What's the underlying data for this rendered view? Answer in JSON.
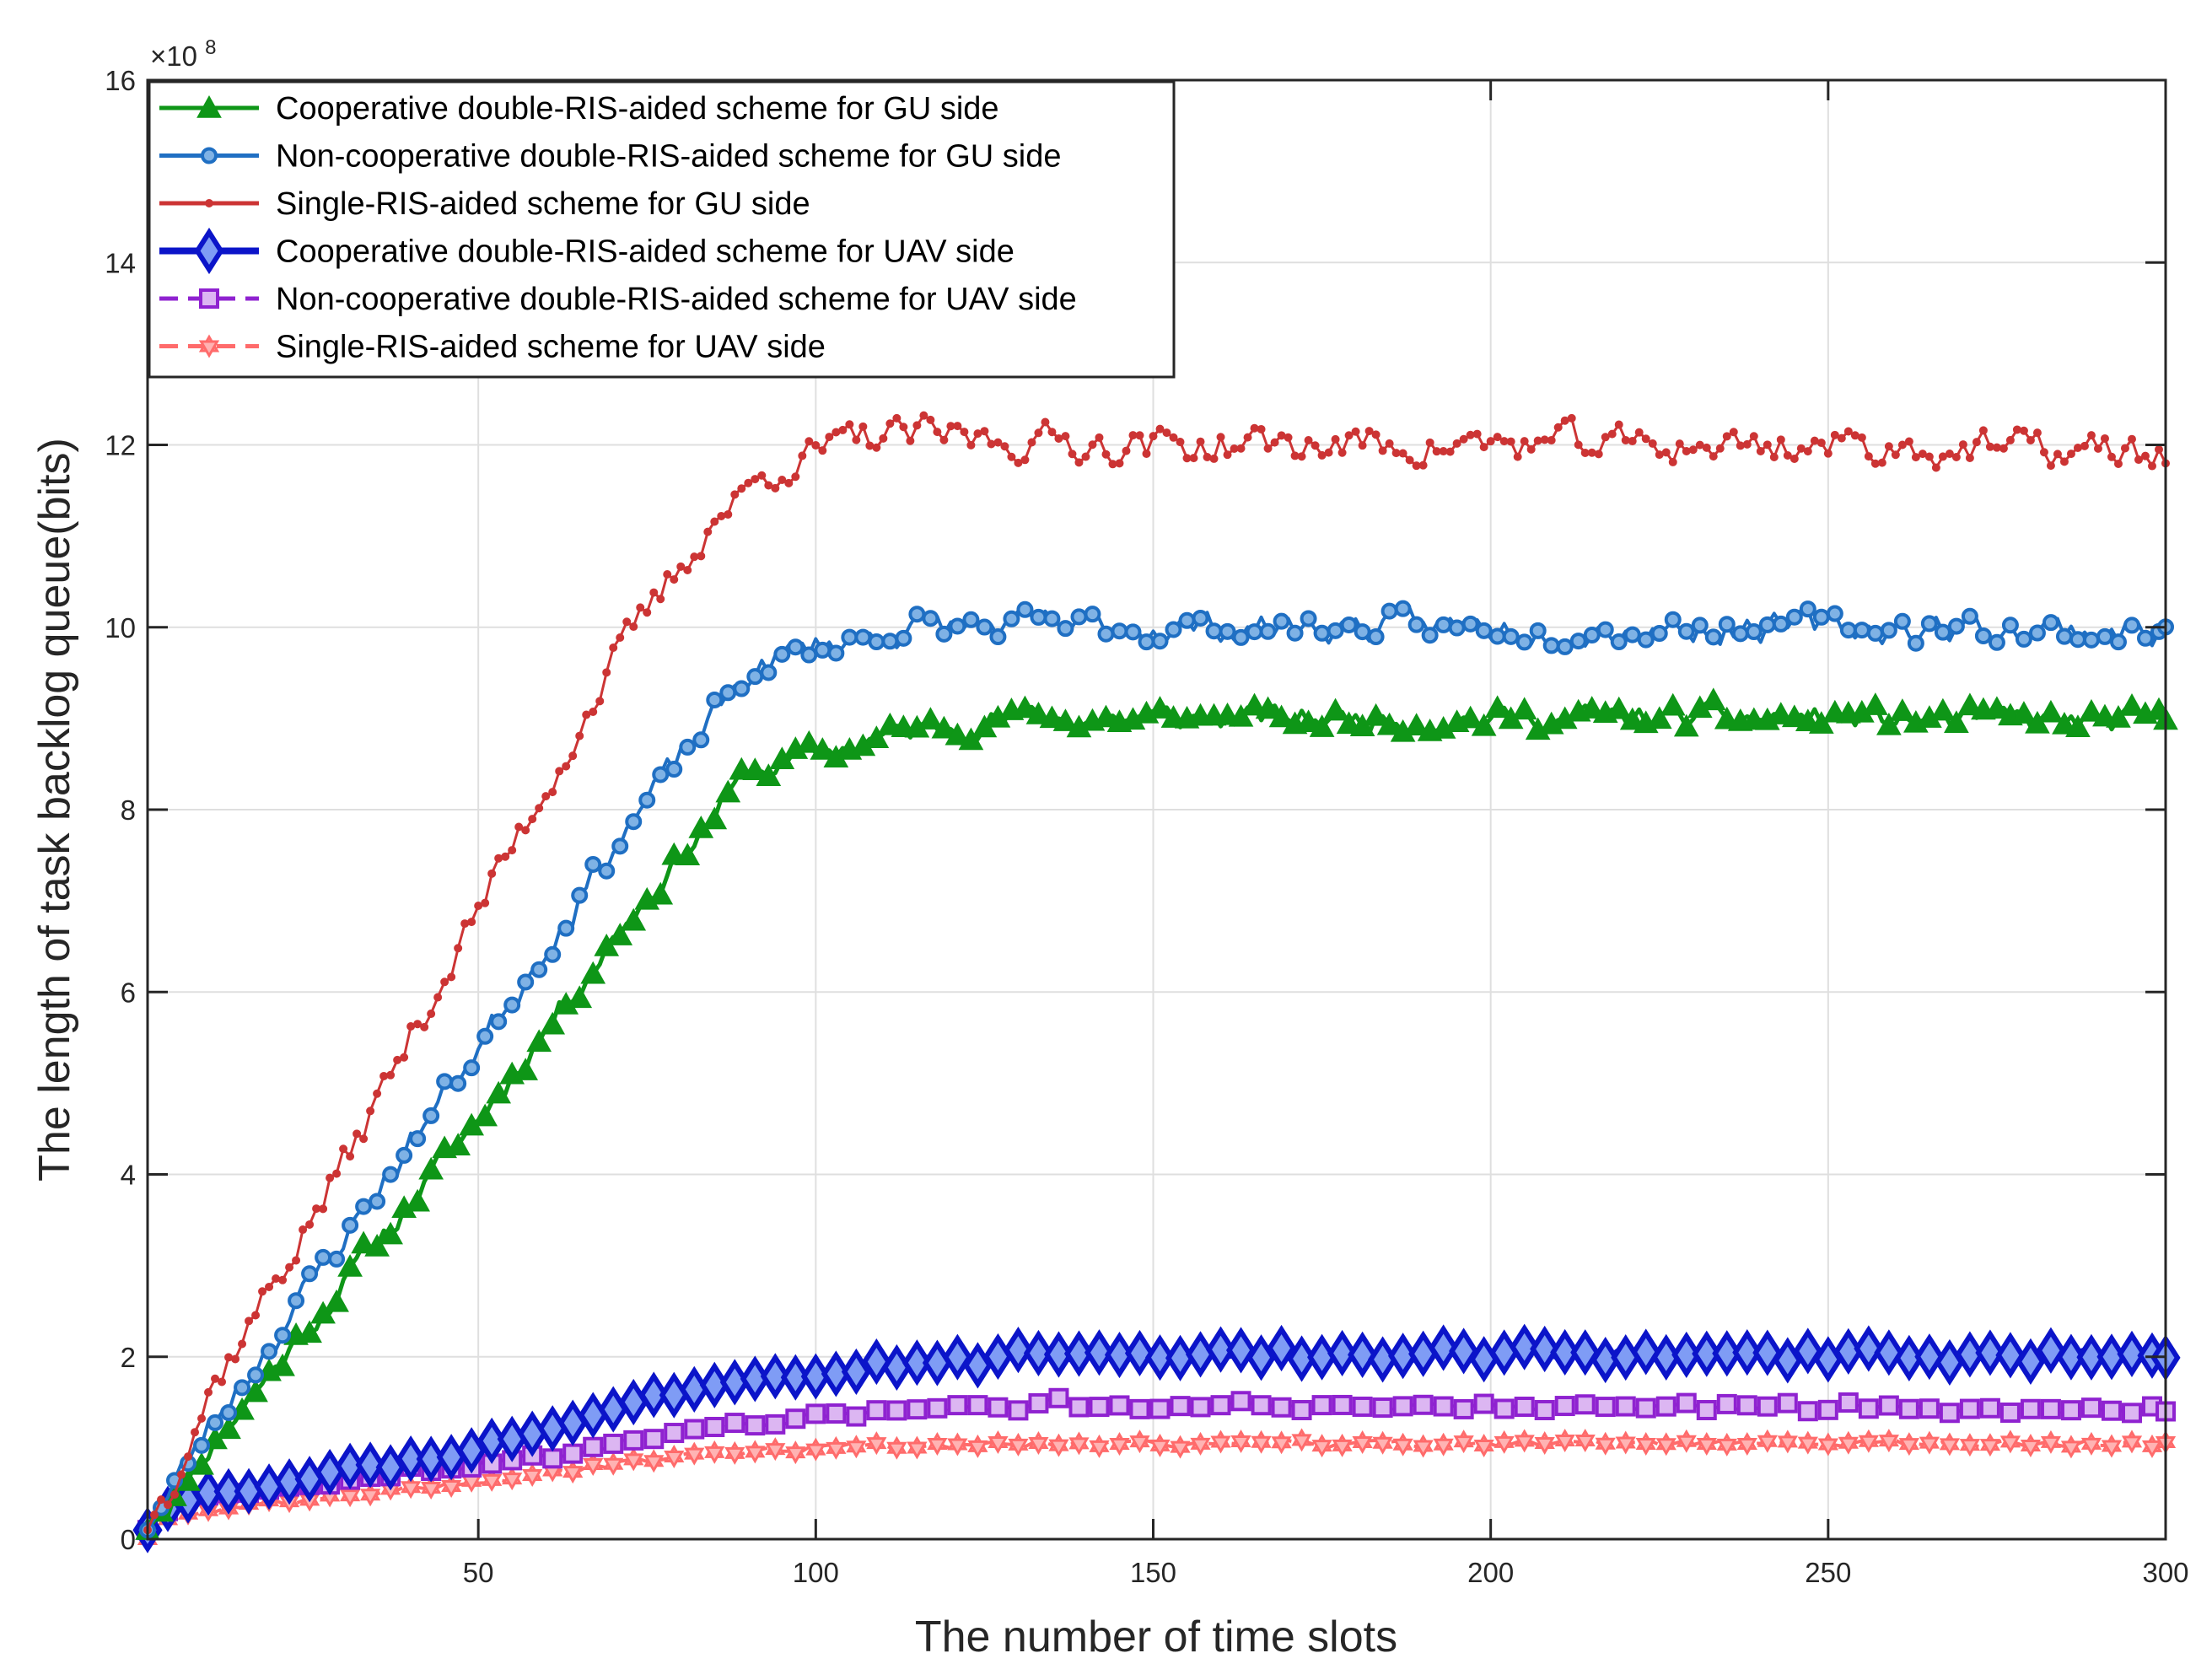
{
  "chart_data": {
    "type": "line",
    "title": "",
    "xlabel": "The number of time slots",
    "ylabel": "The length of task backlog queue(bits)",
    "xlim": [
      1,
      300
    ],
    "ylim": [
      0,
      16
    ],
    "y_multiplier_label": "×10",
    "y_multiplier_exponent": "8",
    "x_ticks": [
      50,
      100,
      150,
      200,
      250,
      300
    ],
    "y_ticks": [
      0,
      2,
      4,
      6,
      8,
      10,
      12,
      14,
      16
    ],
    "x_tick_labels": [
      "50",
      "100",
      "150",
      "200",
      "250",
      "300"
    ],
    "y_tick_labels": [
      "0",
      "2",
      "4",
      "6",
      "8",
      "10",
      "12",
      "14",
      "16"
    ],
    "grid": true,
    "legend_position": "top-left",
    "series": [
      {
        "name": "Cooperative double-RIS-aided scheme for GU side",
        "color": "#0e9617",
        "marker": "triangle",
        "line_style": "solid",
        "marker_every": 2,
        "control_points": [
          [
            1,
            0.1
          ],
          [
            10,
            1.0
          ],
          [
            30,
            2.8
          ],
          [
            50,
            4.6
          ],
          [
            70,
            6.6
          ],
          [
            90,
            8.4
          ],
          [
            110,
            8.8
          ],
          [
            125,
            9.0
          ],
          [
            150,
            9.0
          ],
          [
            200,
            9.0
          ],
          [
            250,
            9.0
          ],
          [
            300,
            8.95
          ]
        ],
        "noise": 0.12,
        "seed": 11
      },
      {
        "name": "Non-cooperative double-RIS-aided scheme for GU side",
        "color": "#1f6fc3",
        "marker": "circle",
        "line_style": "solid",
        "marker_every": 2,
        "control_points": [
          [
            1,
            0.1
          ],
          [
            10,
            1.2
          ],
          [
            30,
            3.3
          ],
          [
            50,
            5.4
          ],
          [
            70,
            7.6
          ],
          [
            90,
            9.5
          ],
          [
            100,
            9.8
          ],
          [
            115,
            10.0
          ],
          [
            150,
            10.0
          ],
          [
            200,
            10.0
          ],
          [
            250,
            10.0
          ],
          [
            300,
            9.95
          ]
        ],
        "noise": 0.14,
        "seed": 23
      },
      {
        "name": "Single-RIS-aided scheme for GU side",
        "color": "#cc3434",
        "marker": "dot",
        "line_style": "solid",
        "marker_every": 1,
        "control_points": [
          [
            1,
            0.1
          ],
          [
            10,
            1.6
          ],
          [
            30,
            4.1
          ],
          [
            50,
            6.9
          ],
          [
            70,
            9.6
          ],
          [
            85,
            11.2
          ],
          [
            95,
            11.8
          ],
          [
            110,
            12.1
          ],
          [
            150,
            12.0
          ],
          [
            200,
            12.0
          ],
          [
            250,
            12.0
          ],
          [
            300,
            11.9
          ]
        ],
        "noise": 0.17,
        "seed": 37
      },
      {
        "name": "Cooperative double-RIS-aided scheme for UAV side",
        "color": "#0b14c9",
        "marker": "diamond",
        "line_style": "solid",
        "marker_every": 3,
        "control_points": [
          [
            1,
            0.1
          ],
          [
            5,
            0.45
          ],
          [
            20,
            0.65
          ],
          [
            40,
            0.9
          ],
          [
            60,
            1.2
          ],
          [
            80,
            1.6
          ],
          [
            100,
            1.85
          ],
          [
            130,
            2.0
          ],
          [
            160,
            2.02
          ],
          [
            200,
            2.02
          ],
          [
            250,
            2.02
          ],
          [
            300,
            2.0
          ]
        ],
        "noise": 0.06,
        "seed": 53
      },
      {
        "name": "Non-cooperative double-RIS-aided scheme for UAV side",
        "color": "#8f22d0",
        "marker": "square",
        "line_style": "dashed",
        "marker_every": 3,
        "control_points": [
          [
            1,
            0.1
          ],
          [
            5,
            0.4
          ],
          [
            20,
            0.55
          ],
          [
            40,
            0.75
          ],
          [
            60,
            0.9
          ],
          [
            80,
            1.2
          ],
          [
            100,
            1.35
          ],
          [
            135,
            1.48
          ],
          [
            160,
            1.45
          ],
          [
            200,
            1.45
          ],
          [
            250,
            1.45
          ],
          [
            300,
            1.42
          ]
        ],
        "noise": 0.04,
        "seed": 71
      },
      {
        "name": "Single-RIS-aided scheme for UAV side",
        "color": "#ff6b6b",
        "marker": "hexagram",
        "line_style": "dashed",
        "marker_every": 3,
        "control_points": [
          [
            1,
            0.0
          ],
          [
            5,
            0.25
          ],
          [
            20,
            0.4
          ],
          [
            40,
            0.55
          ],
          [
            60,
            0.72
          ],
          [
            80,
            0.92
          ],
          [
            100,
            1.0
          ],
          [
            130,
            1.05
          ],
          [
            160,
            1.05
          ],
          [
            200,
            1.05
          ],
          [
            250,
            1.05
          ],
          [
            300,
            1.05
          ]
        ],
        "noise": 0.03,
        "seed": 89
      }
    ]
  }
}
